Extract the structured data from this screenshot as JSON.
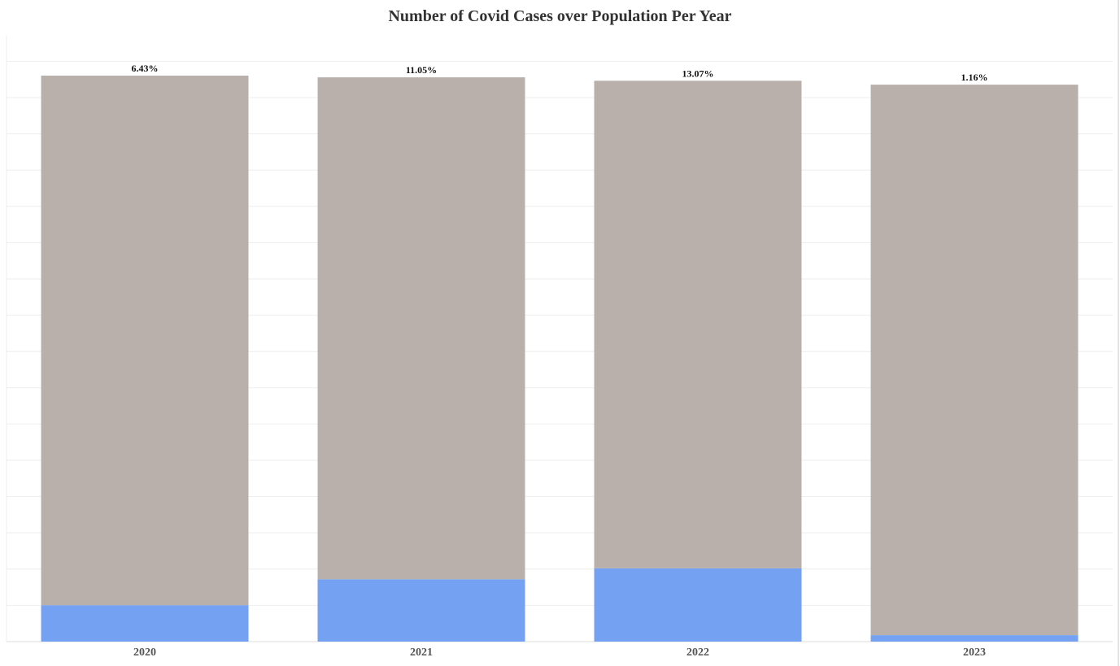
{
  "chart_data": {
    "type": "bar",
    "stacked": true,
    "title": "Number of Covid Cases over Population Per Year",
    "xlabel": "",
    "ylabel": "",
    "ylim": [
      0,
      100
    ],
    "grid": true,
    "categories": [
      "2020",
      "2021",
      "2022",
      "2023"
    ],
    "data_labels": [
      "6.43%",
      "11.05%",
      "13.07%",
      "1.16%"
    ],
    "series": [
      {
        "values": [
          6.43,
          11.05,
          13.07,
          1.16
        ],
        "color": "#75a1f2"
      },
      {
        "values": [
          93.57,
          88.95,
          86.93,
          98.84
        ],
        "color": "#bab0ab"
      }
    ],
    "relative_totals": [
      1.0,
      0.997,
      0.991,
      0.984
    ]
  }
}
